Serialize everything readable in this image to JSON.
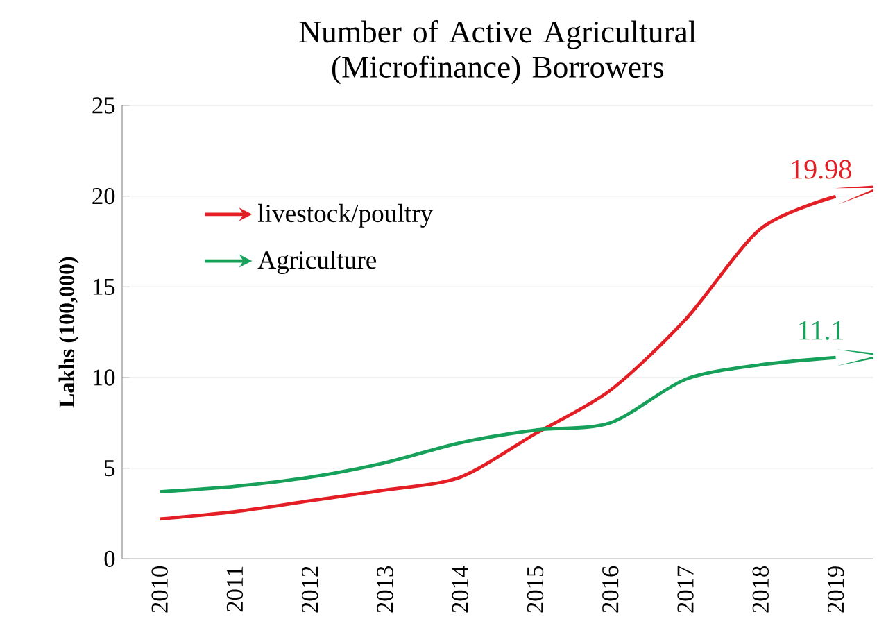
{
  "chart_data": {
    "type": "line",
    "title": "Number of Active Agricultural (Microfinance) Borrowers",
    "ylabel": "Lakhs (100,000)",
    "categories": [
      "2010",
      "2011",
      "2012",
      "2013",
      "2014",
      "2015",
      "2016",
      "2017",
      "2018",
      "2019"
    ],
    "series": [
      {
        "name": "livestock/poultry",
        "color": "#e31e24",
        "values": [
          2.2,
          2.6,
          3.2,
          3.8,
          4.5,
          6.9,
          9.3,
          13.2,
          18.2,
          19.98
        ]
      },
      {
        "name": "Agriculture",
        "color": "#16a05a",
        "values": [
          3.7,
          4.0,
          4.5,
          5.3,
          6.4,
          7.1,
          7.5,
          9.9,
          10.7,
          11.1
        ]
      }
    ],
    "ylim": [
      0,
      25
    ],
    "yticks": [
      0,
      5,
      10,
      15,
      20,
      25
    ],
    "grid": "y",
    "legend": "top left",
    "marker": "none",
    "line_style": "solid",
    "annotations": [
      {
        "text": "19.98",
        "x": "2019",
        "y": 19.98
      },
      {
        "text": "11.1",
        "x": "2019",
        "y": 11.1
      }
    ]
  }
}
